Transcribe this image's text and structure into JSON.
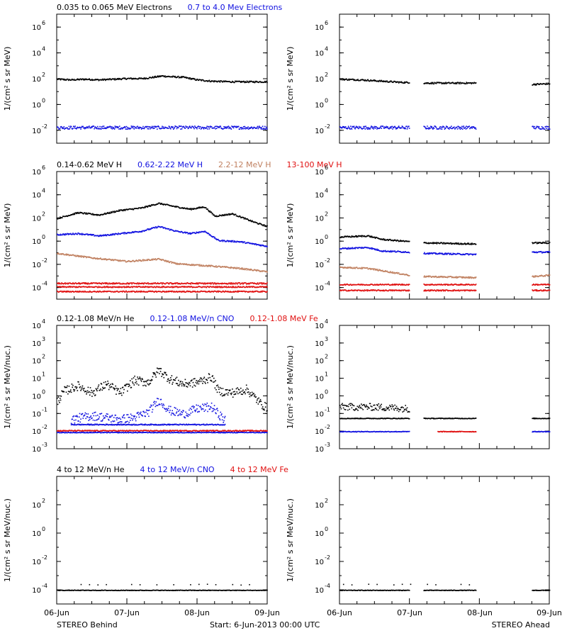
{
  "colors": {
    "black": "#000000",
    "blue": "#1010e0",
    "tan": "#c08060",
    "red": "#e01010"
  },
  "chart_data": [
    {
      "id": "electrons",
      "type": "scatter",
      "legend": [
        {
          "text": "0.035 to 0.065 MeV Electrons",
          "color": "#000000"
        },
        {
          "text": "0.7 to 4.0 Mev Electrons",
          "color": "#1010e0"
        }
      ],
      "ylabel": "1/(cm² s sr MeV)",
      "ylim_log10": [
        -3,
        7
      ],
      "yticks": [
        {
          "p": -2,
          "t": "10"
        },
        {
          "p": 0,
          "t": "10"
        },
        {
          "p": 2,
          "t": "10"
        },
        {
          "p": 4,
          "t": "10"
        },
        {
          "p": 6,
          "t": "10"
        }
      ],
      "behind": [
        {
          "color": "#000000",
          "pts": [
            [
              0,
              2.0
            ],
            [
              0.2,
              1.95
            ],
            [
              0.4,
              2.0
            ],
            [
              0.6,
              1.95
            ],
            [
              0.8,
              2.0
            ],
            [
              1.0,
              2.05
            ],
            [
              1.2,
              2.05
            ],
            [
              1.3,
              2.1
            ],
            [
              1.5,
              2.25
            ],
            [
              1.6,
              2.2
            ],
            [
              1.8,
              2.15
            ],
            [
              2.0,
              1.95
            ],
            [
              2.2,
              1.85
            ],
            [
              2.5,
              1.8
            ],
            [
              3.0,
              1.8
            ]
          ]
        },
        {
          "color": "#1010e0",
          "pts": [
            [
              0,
              -1.75
            ],
            [
              3.0,
              -1.75
            ]
          ],
          "scatter": 0.12
        }
      ],
      "ahead": [
        {
          "color": "#000000",
          "pts": [
            [
              0,
              2.0
            ],
            [
              0.3,
              1.95
            ],
            [
              0.6,
              1.85
            ],
            [
              0.9,
              1.75
            ],
            [
              1.0,
              1.75
            ]
          ]
        },
        {
          "color": "#000000",
          "pts": [
            [
              1.2,
              1.7
            ],
            [
              1.95,
              1.7
            ]
          ]
        },
        {
          "color": "#000000",
          "pts": [
            [
              2.75,
              1.6
            ],
            [
              3.0,
              1.65
            ]
          ]
        },
        {
          "color": "#1010e0",
          "pts": [
            [
              0,
              -1.75
            ],
            [
              1.0,
              -1.75
            ]
          ],
          "scatter": 0.12
        },
        {
          "color": "#1010e0",
          "pts": [
            [
              1.2,
              -1.75
            ],
            [
              1.95,
              -1.75
            ]
          ],
          "scatter": 0.12
        },
        {
          "color": "#1010e0",
          "pts": [
            [
              2.75,
              -1.75
            ],
            [
              3.0,
              -1.75
            ]
          ],
          "scatter": 0.12
        }
      ]
    },
    {
      "id": "protons",
      "type": "scatter",
      "legend": [
        {
          "text": "0.14-0.62 MeV H",
          "color": "#000000"
        },
        {
          "text": "0.62-2.22 MeV H",
          "color": "#1010e0"
        },
        {
          "text": "2.2-12 MeV H",
          "color": "#c08060"
        },
        {
          "text": "13-100 MeV H",
          "color": "#e01010"
        }
      ],
      "ylabel": "1/(cm² s sr MeV)",
      "ylim_log10": [
        -5,
        6
      ],
      "yticks": [
        {
          "p": -4,
          "t": "10"
        },
        {
          "p": -2,
          "t": "10"
        },
        {
          "p": 0,
          "t": "10"
        },
        {
          "p": 2,
          "t": "10"
        },
        {
          "p": 4,
          "t": "10"
        },
        {
          "p": 6,
          "t": "10"
        }
      ],
      "behind": [
        {
          "color": "#000000",
          "pts": [
            [
              0,
              2.0
            ],
            [
              0.3,
              2.5
            ],
            [
              0.6,
              2.3
            ],
            [
              0.9,
              2.7
            ],
            [
              1.2,
              2.9
            ],
            [
              1.45,
              3.3
            ],
            [
              1.7,
              3.0
            ],
            [
              1.9,
              2.8
            ],
            [
              2.1,
              3.0
            ],
            [
              2.25,
              2.2
            ],
            [
              2.5,
              2.4
            ],
            [
              2.8,
              1.7
            ],
            [
              3.0,
              1.3
            ]
          ]
        },
        {
          "color": "#1010e0",
          "pts": [
            [
              0,
              0.6
            ],
            [
              0.3,
              0.7
            ],
            [
              0.6,
              0.5
            ],
            [
              0.9,
              0.7
            ],
            [
              1.2,
              0.9
            ],
            [
              1.45,
              1.3
            ],
            [
              1.7,
              0.9
            ],
            [
              1.9,
              0.7
            ],
            [
              2.1,
              0.9
            ],
            [
              2.3,
              0.1
            ],
            [
              2.6,
              0.0
            ],
            [
              3.0,
              -0.4
            ]
          ]
        },
        {
          "color": "#c08060",
          "pts": [
            [
              0,
              -1.0
            ],
            [
              0.5,
              -1.4
            ],
            [
              1.0,
              -1.7
            ],
            [
              1.45,
              -1.5
            ],
            [
              1.7,
              -1.9
            ],
            [
              2.2,
              -2.1
            ],
            [
              2.6,
              -2.3
            ],
            [
              3.0,
              -2.6
            ]
          ]
        },
        {
          "color": "#e01010",
          "pts": [
            [
              0,
              -3.6
            ],
            [
              3.0,
              -3.6
            ]
          ],
          "scatter": 0.06
        },
        {
          "color": "#e01010",
          "pts": [
            [
              0,
              -3.9
            ],
            [
              3.0,
              -3.9
            ]
          ],
          "scatter": 0.05
        },
        {
          "color": "#e01010",
          "pts": [
            [
              0,
              -4.3
            ],
            [
              3.0,
              -4.3
            ]
          ],
          "scatter": 0.05
        }
      ],
      "ahead": [
        {
          "color": "#000000",
          "pts": [
            [
              0,
              0.4
            ],
            [
              0.4,
              0.5
            ],
            [
              0.6,
              0.2
            ],
            [
              1.0,
              0.0
            ]
          ]
        },
        {
          "color": "#000000",
          "pts": [
            [
              1.2,
              -0.1
            ],
            [
              1.95,
              -0.2
            ]
          ]
        },
        {
          "color": "#000000",
          "pts": [
            [
              2.75,
              -0.1
            ],
            [
              3.0,
              -0.1
            ]
          ]
        },
        {
          "color": "#1010e0",
          "pts": [
            [
              0,
              -0.6
            ],
            [
              0.4,
              -0.5
            ],
            [
              0.6,
              -0.8
            ],
            [
              1.0,
              -0.9
            ]
          ]
        },
        {
          "color": "#1010e0",
          "pts": [
            [
              1.2,
              -1.0
            ],
            [
              1.95,
              -1.1
            ]
          ]
        },
        {
          "color": "#1010e0",
          "pts": [
            [
              2.75,
              -0.9
            ],
            [
              3.0,
              -0.9
            ]
          ]
        },
        {
          "color": "#c08060",
          "pts": [
            [
              0,
              -2.2
            ],
            [
              0.4,
              -2.3
            ],
            [
              0.7,
              -2.6
            ],
            [
              1.0,
              -2.9
            ]
          ]
        },
        {
          "color": "#c08060",
          "pts": [
            [
              1.2,
              -3.0
            ],
            [
              1.95,
              -3.1
            ]
          ]
        },
        {
          "color": "#c08060",
          "pts": [
            [
              2.75,
              -3.0
            ],
            [
              3.0,
              -2.9
            ]
          ]
        },
        {
          "color": "#e01010",
          "pts": [
            [
              0,
              -3.7
            ],
            [
              1.0,
              -3.7
            ]
          ],
          "scatter": 0.05
        },
        {
          "color": "#e01010",
          "pts": [
            [
              1.2,
              -3.7
            ],
            [
              1.95,
              -3.7
            ]
          ],
          "scatter": 0.05
        },
        {
          "color": "#e01010",
          "pts": [
            [
              2.75,
              -3.7
            ],
            [
              3.0,
              -3.7
            ]
          ],
          "scatter": 0.05
        },
        {
          "color": "#e01010",
          "pts": [
            [
              0,
              -4.2
            ],
            [
              1.0,
              -4.2
            ]
          ],
          "scatter": 0.05
        },
        {
          "color": "#e01010",
          "pts": [
            [
              1.2,
              -4.2
            ],
            [
              1.95,
              -4.2
            ]
          ],
          "scatter": 0.05
        },
        {
          "color": "#e01010",
          "pts": [
            [
              2.75,
              -4.2
            ],
            [
              3.0,
              -4.2
            ]
          ],
          "scatter": 0.05
        }
      ]
    },
    {
      "id": "heavy-ions-low",
      "type": "scatter",
      "legend": [
        {
          "text": "0.12-1.08 MeV/n He",
          "color": "#000000"
        },
        {
          "text": "0.12-1.08 MeV/n CNO",
          "color": "#1010e0"
        },
        {
          "text": "0.12-1.08 MeV Fe",
          "color": "#e01010"
        }
      ],
      "ylabel": "1/(cm² s sr MeV/nuc.)",
      "ylim_log10": [
        -3,
        4
      ],
      "yticks": [
        {
          "p": -3,
          "t": "10"
        },
        {
          "p": -2,
          "t": "10"
        },
        {
          "p": -1,
          "t": "10"
        },
        {
          "p": 0,
          "t": "10"
        },
        {
          "p": 1,
          "t": "10"
        },
        {
          "p": 2,
          "t": "10"
        },
        {
          "p": 3,
          "t": "10"
        },
        {
          "p": 4,
          "t": "10"
        }
      ],
      "behind": [
        {
          "color": "#000000",
          "pts": [
            [
              0,
              -0.3
            ],
            [
              0.1,
              0.3
            ],
            [
              0.3,
              0.6
            ],
            [
              0.5,
              0.2
            ],
            [
              0.7,
              0.7
            ],
            [
              0.9,
              0.2
            ],
            [
              1.1,
              0.9
            ],
            [
              1.3,
              0.8
            ],
            [
              1.45,
              1.5
            ],
            [
              1.6,
              1.0
            ],
            [
              1.8,
              0.7
            ],
            [
              2.0,
              0.8
            ],
            [
              2.2,
              1.1
            ],
            [
              2.3,
              0.3
            ],
            [
              2.5,
              0.2
            ],
            [
              2.7,
              0.4
            ],
            [
              2.9,
              -0.4
            ],
            [
              3.0,
              -0.7
            ]
          ],
          "scatter": 0.25
        },
        {
          "color": "#1010e0",
          "pts": [
            [
              0.2,
              -1.3
            ],
            [
              0.5,
              -1.1
            ],
            [
              0.9,
              -1.3
            ],
            [
              1.1,
              -1.2
            ],
            [
              1.3,
              -0.9
            ],
            [
              1.45,
              -0.2
            ],
            [
              1.6,
              -0.8
            ],
            [
              1.8,
              -1.0
            ],
            [
              2.0,
              -0.7
            ],
            [
              2.2,
              -0.6
            ],
            [
              2.4,
              -1.4
            ]
          ],
          "scatter": 0.25
        },
        {
          "color": "#1010e0",
          "pts": [
            [
              0.2,
              -1.6
            ],
            [
              2.4,
              -1.6
            ]
          ],
          "scatter": 0.03
        },
        {
          "color": "#e01010",
          "pts": [
            [
              0,
              -1.95
            ],
            [
              3.0,
              -1.95
            ]
          ],
          "scatter": 0.03
        },
        {
          "color": "#1010e0",
          "pts": [
            [
              0,
              -2.05
            ],
            [
              3.0,
              -2.05
            ]
          ],
          "scatter": 0.02
        }
      ],
      "ahead": [
        {
          "color": "#000000",
          "pts": [
            [
              0,
              -0.6
            ],
            [
              0.3,
              -0.6
            ],
            [
              0.5,
              -0.6
            ],
            [
              1.0,
              -0.7
            ]
          ],
          "scatter": 0.2
        },
        {
          "color": "#000000",
          "pts": [
            [
              0,
              -1.25
            ],
            [
              1.0,
              -1.25
            ]
          ],
          "scatter": 0.02
        },
        {
          "color": "#000000",
          "pts": [
            [
              1.2,
              -1.25
            ],
            [
              1.95,
              -1.25
            ]
          ],
          "scatter": 0.02
        },
        {
          "color": "#000000",
          "pts": [
            [
              2.75,
              -1.25
            ],
            [
              3.0,
              -1.25
            ]
          ],
          "scatter": 0.02
        },
        {
          "color": "#1010e0",
          "pts": [
            [
              0,
              -2.0
            ],
            [
              1.0,
              -2.0
            ]
          ],
          "scatter": 0.02
        },
        {
          "color": "#e01010",
          "pts": [
            [
              1.4,
              -2.0
            ],
            [
              1.95,
              -2.0
            ]
          ],
          "scatter": 0.02
        },
        {
          "color": "#1010e0",
          "pts": [
            [
              2.75,
              -2.0
            ],
            [
              3.0,
              -2.0
            ]
          ],
          "scatter": 0.02
        }
      ]
    },
    {
      "id": "heavy-ions-high",
      "type": "scatter",
      "legend": [
        {
          "text": "4 to 12 MeV/n He",
          "color": "#000000"
        },
        {
          "text": "4 to 12 MeV/n CNO",
          "color": "#1010e0"
        },
        {
          "text": "4 to 12 MeV Fe",
          "color": "#e01010"
        }
      ],
      "ylabel": "1/(cm² s sr MeV/nuc.)",
      "ylim_log10": [
        -5,
        4
      ],
      "yticks": [
        {
          "p": -4,
          "t": "10"
        },
        {
          "p": -2,
          "t": "10"
        },
        {
          "p": 0,
          "t": "10"
        },
        {
          "p": 2,
          "t": "10"
        }
      ],
      "behind": [
        {
          "color": "#000000",
          "pts": [
            [
              0,
              -4.0
            ],
            [
              3.0,
              -4.0
            ]
          ],
          "scatter": 0.02
        },
        {
          "color": "#000000",
          "pts": [
            [
              0.1,
              -3.6
            ],
            [
              2.9,
              -3.6
            ]
          ],
          "scatter": 0.03,
          "sparse": true
        }
      ],
      "ahead": [
        {
          "color": "#000000",
          "pts": [
            [
              0,
              -4.0
            ],
            [
              1.0,
              -4.0
            ]
          ],
          "scatter": 0.02
        },
        {
          "color": "#000000",
          "pts": [
            [
              1.2,
              -4.0
            ],
            [
              1.95,
              -4.0
            ]
          ],
          "scatter": 0.02
        },
        {
          "color": "#000000",
          "pts": [
            [
              2.75,
              -4.0
            ],
            [
              3.0,
              -4.0
            ]
          ],
          "scatter": 0.02
        },
        {
          "color": "#000000",
          "pts": [
            [
              0.05,
              -3.6
            ],
            [
              1.9,
              -3.6
            ]
          ],
          "scatter": 0.03,
          "sparse": true
        }
      ]
    }
  ],
  "x_ticks": [
    "06-Jun",
    "07-Jun",
    "08-Jun",
    "09-Jun"
  ],
  "footer": {
    "left": "STEREO Behind",
    "center": "Start:  6-Jun-2013 00:00 UTC",
    "right": "STEREO Ahead"
  }
}
